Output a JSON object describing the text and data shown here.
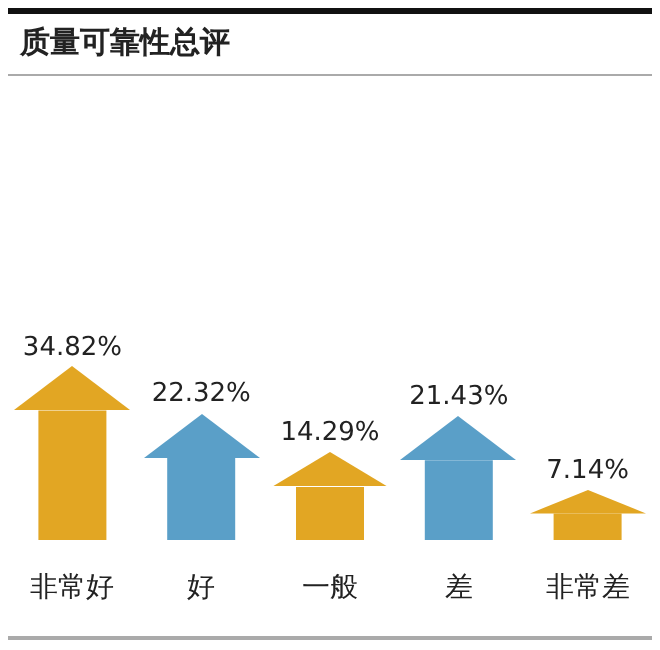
{
  "chart_data": {
    "type": "bar",
    "title": "质量可靠性总评",
    "categories": [
      "非常好",
      "好",
      "一般",
      "差",
      "非常差"
    ],
    "values": [
      34.82,
      22.32,
      14.29,
      21.43,
      7.14
    ],
    "colors": [
      "#e2a623",
      "#5a9fc8",
      "#e2a623",
      "#5a9fc8",
      "#e2a623"
    ],
    "data_labels": true,
    "value_labels": [
      "34.82%",
      "22.32%",
      "14.29%",
      "21.43%",
      "7.14%"
    ]
  }
}
